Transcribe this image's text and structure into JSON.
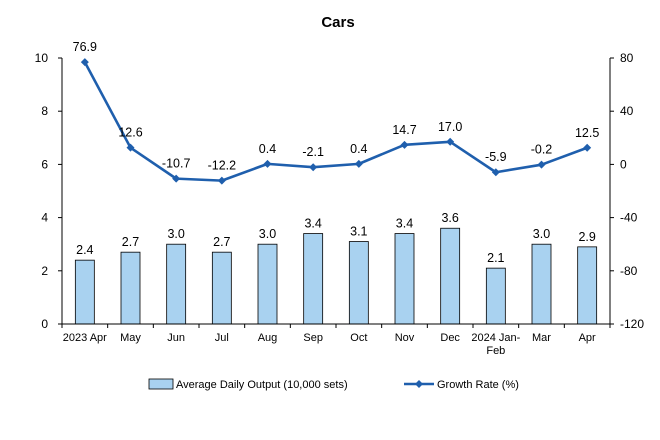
{
  "chart_data": {
    "type": "bar+line",
    "title": "Cars",
    "categories": [
      "2023 Apr",
      "May",
      "Jun",
      "Jul",
      "Aug",
      "Sep",
      "Oct",
      "Nov",
      "Dec",
      "2024 Jan-Feb",
      "Mar",
      "Apr"
    ],
    "series": [
      {
        "name": "Average Daily Output (10,000 sets)",
        "type": "bar",
        "axis": "left",
        "values": [
          2.4,
          2.7,
          3.0,
          2.7,
          3.0,
          3.4,
          3.1,
          3.4,
          3.6,
          2.1,
          3.0,
          2.9
        ],
        "labels": [
          "2.4",
          "2.7",
          "3.0",
          "2.7",
          "3.0",
          "3.4",
          "3.1",
          "3.4",
          "3.6",
          "2.1",
          "3.0",
          "2.9"
        ],
        "color": "#a9d2f0",
        "border_color": "#000000"
      },
      {
        "name": "Growth Rate (%)",
        "type": "line",
        "axis": "right",
        "values": [
          76.9,
          12.6,
          -10.7,
          -12.2,
          0.4,
          -2.1,
          0.4,
          14.7,
          17.0,
          -5.9,
          -0.2,
          12.5
        ],
        "labels": [
          "76.9",
          "12.6",
          "-10.7",
          "-12.2",
          "0.4",
          "-2.1",
          "0.4",
          "14.7",
          "17.0",
          "-5.9",
          "-0.2",
          "12.5"
        ],
        "color": "#1f5fad"
      }
    ],
    "y_left": {
      "lim": [
        0,
        10
      ],
      "ticks": [
        0,
        2,
        4,
        6,
        8,
        10
      ]
    },
    "y_right": {
      "lim": [
        -120,
        80
      ],
      "ticks": [
        -120,
        -80,
        -40,
        0,
        40,
        80
      ]
    },
    "grid": false,
    "legend_position": "bottom"
  }
}
